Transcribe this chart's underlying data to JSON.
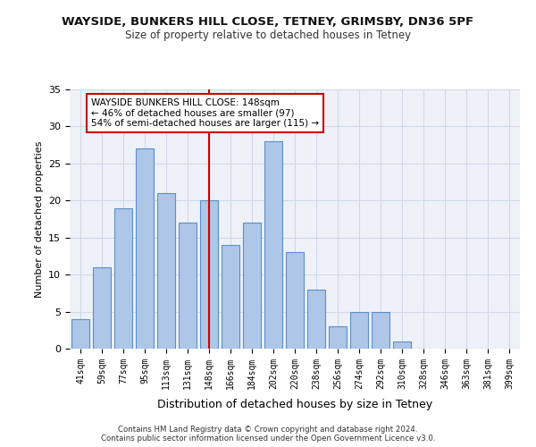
{
  "title1": "WAYSIDE, BUNKERS HILL CLOSE, TETNEY, GRIMSBY, DN36 5PF",
  "title2": "Size of property relative to detached houses in Tetney",
  "xlabel": "Distribution of detached houses by size in Tetney",
  "ylabel": "Number of detached properties",
  "bin_labels": [
    "41sqm",
    "59sqm",
    "77sqm",
    "95sqm",
    "113sqm",
    "131sqm",
    "148sqm",
    "166sqm",
    "184sqm",
    "202sqm",
    "220sqm",
    "238sqm",
    "256sqm",
    "274sqm",
    "292sqm",
    "310sqm",
    "328sqm",
    "346sqm",
    "363sqm",
    "381sqm",
    "399sqm"
  ],
  "bar_values": [
    4,
    11,
    19,
    27,
    21,
    17,
    20,
    14,
    17,
    28,
    13,
    8,
    3,
    5,
    5,
    1,
    0,
    0,
    0,
    0,
    0
  ],
  "bar_color": "#aec6e8",
  "bar_edge_color": "#5b8fc9",
  "property_line_index": 6,
  "annotation_text": "WAYSIDE BUNKERS HILL CLOSE: 148sqm\n← 46% of detached houses are smaller (97)\n54% of semi-detached houses are larger (115) →",
  "annotation_box_color": "#ffffff",
  "annotation_box_edge_color": "#cc0000",
  "vline_color": "#cc0000",
  "grid_color": "#d0d8e8",
  "background_color": "#eef2f8",
  "footer_text": "Contains HM Land Registry data © Crown copyright and database right 2024.\nContains public sector information licensed under the Open Government Licence v3.0.",
  "ylim": [
    0,
    35
  ],
  "yticks": [
    0,
    5,
    10,
    15,
    20,
    25,
    30,
    35
  ]
}
